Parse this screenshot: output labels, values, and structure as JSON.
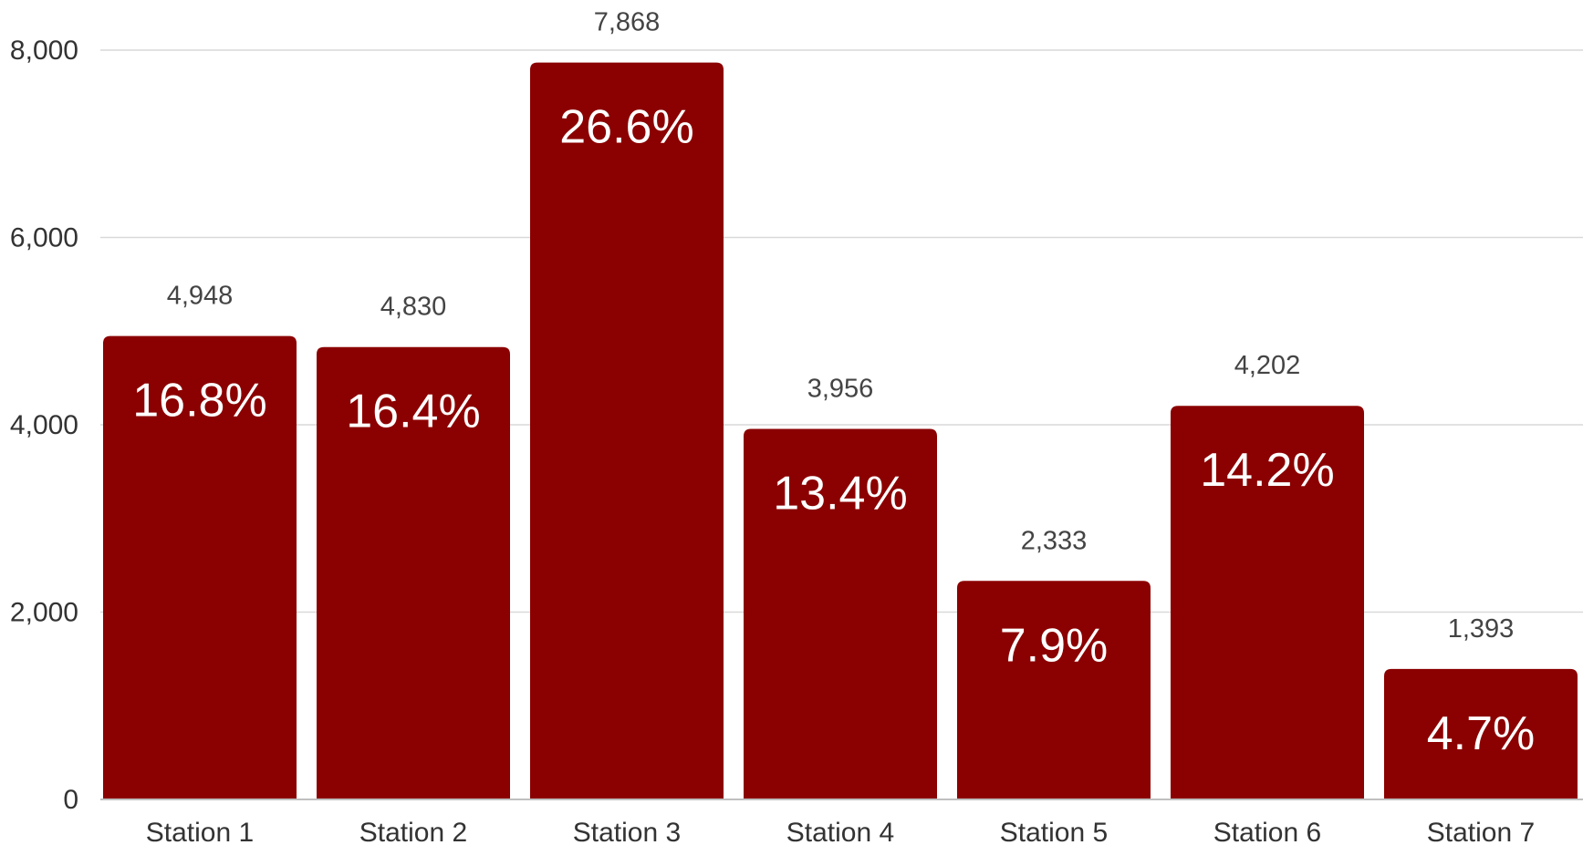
{
  "chart_data": {
    "type": "bar",
    "title": "",
    "xlabel": "",
    "ylabel": "",
    "categories": [
      "Station 1",
      "Station 2",
      "Station 3",
      "Station 4",
      "Station 5",
      "Station 6",
      "Station 7"
    ],
    "values": [
      4948,
      4830,
      7868,
      3956,
      2333,
      4202,
      1393
    ],
    "value_labels": [
      "4,948",
      "4,830",
      "7,868",
      "3,956",
      "2,333",
      "4,202",
      "1,393"
    ],
    "percent_labels": [
      "16.8%",
      "16.4%",
      "26.6%",
      "13.4%",
      "7.9%",
      "14.2%",
      "4.7%"
    ],
    "ylim": [
      0,
      8000
    ],
    "yticks": [
      0,
      2000,
      4000,
      6000,
      8000
    ],
    "ytick_labels": [
      "0",
      "2,000",
      "4,000",
      "6,000",
      "8,000"
    ],
    "grid": true,
    "legend": "none",
    "bar_color": "#8b0000"
  }
}
